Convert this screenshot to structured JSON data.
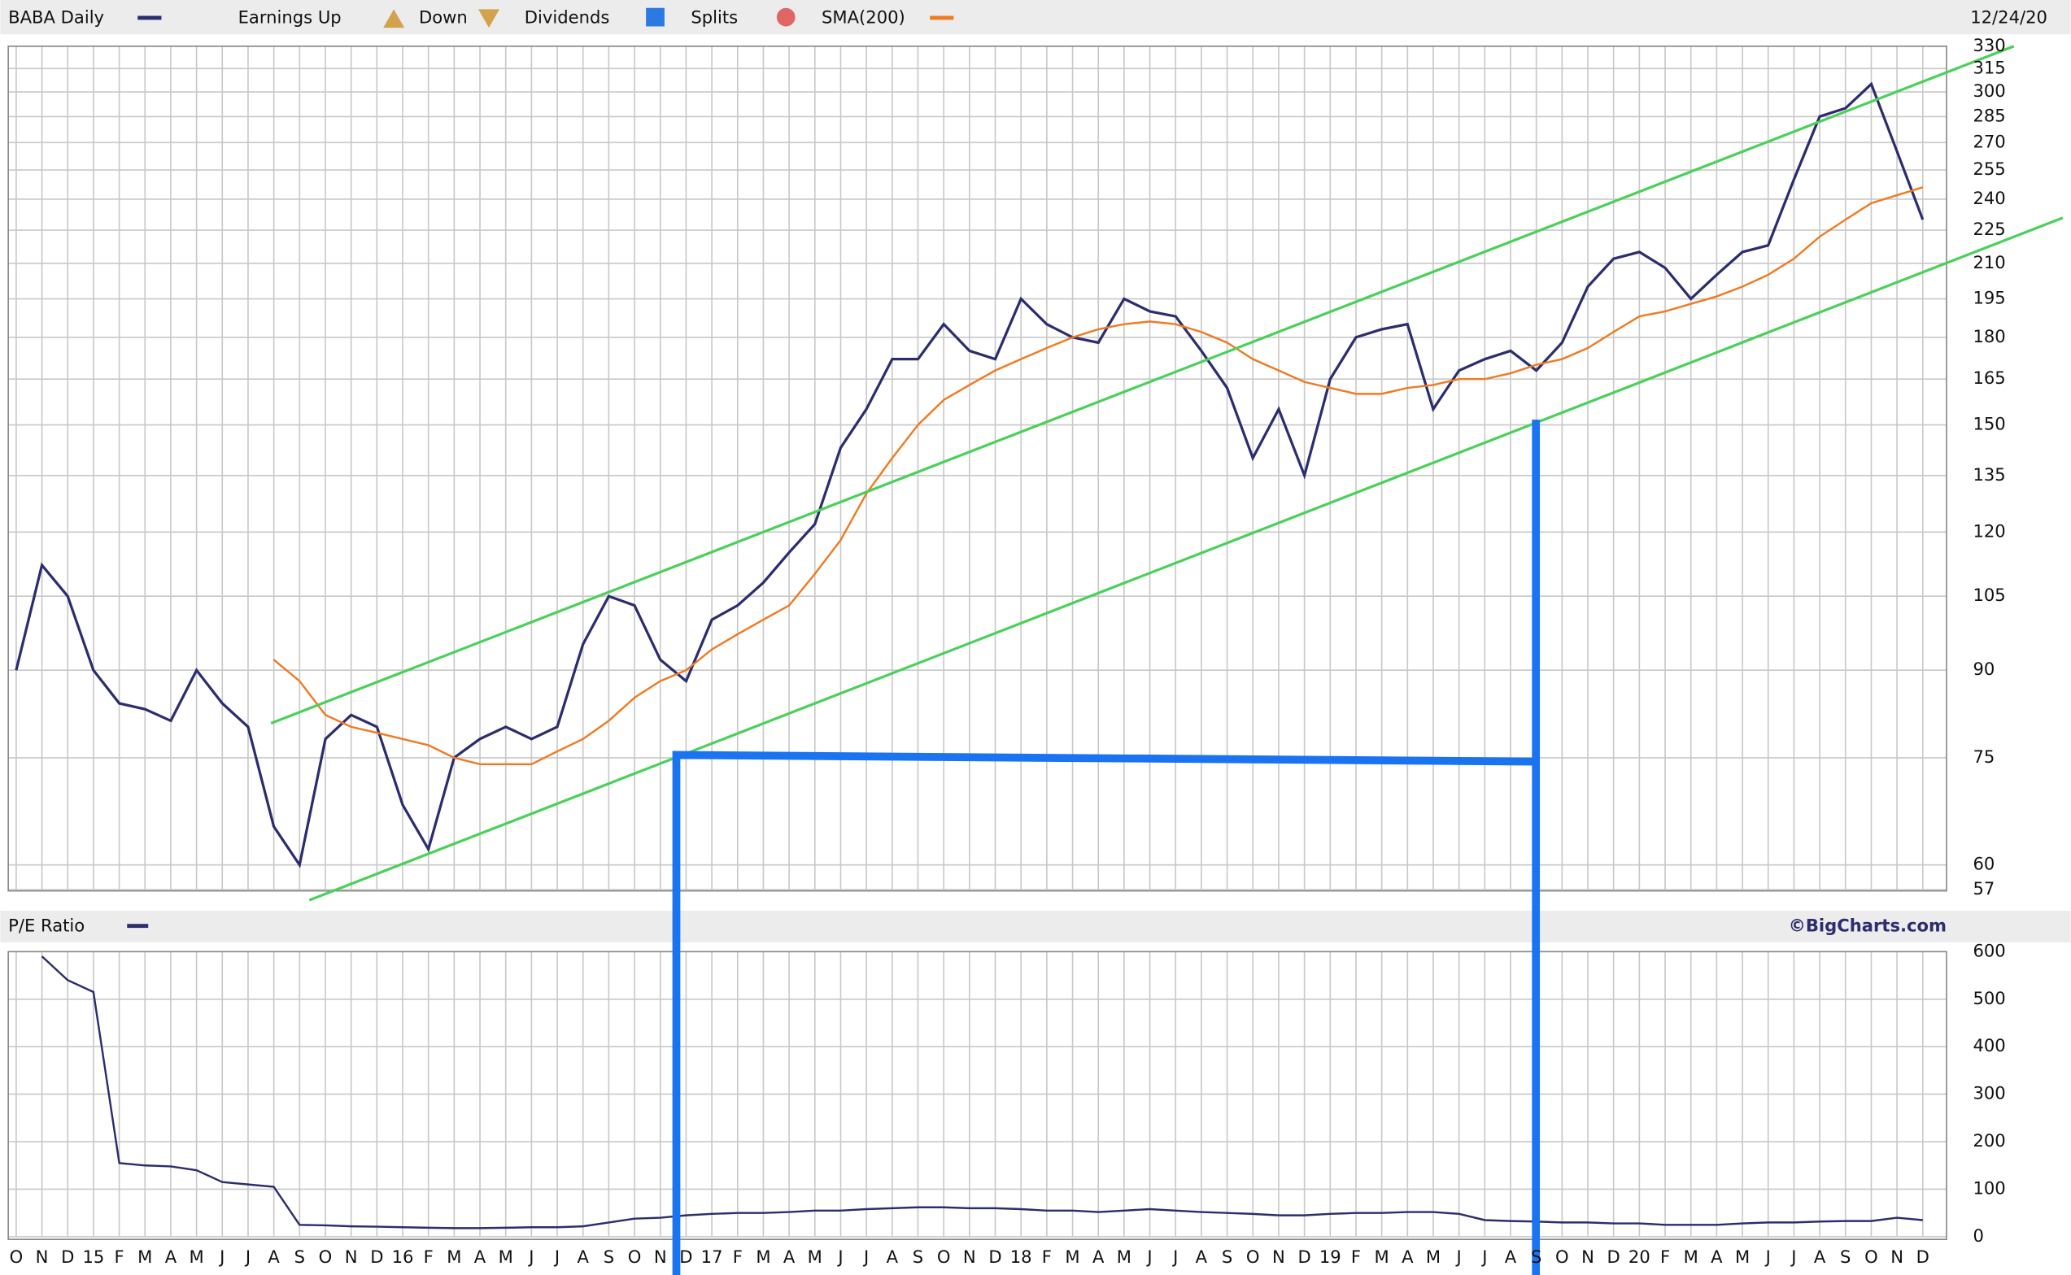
{
  "chart_data": {
    "type": "line",
    "title": "BABA Daily",
    "date": "12/24/20",
    "legend": {
      "earnings_up": "Earnings Up",
      "earnings_down": "Down",
      "dividends": "Dividends",
      "splits": "Splits"
    },
    "credit": "©BigCharts.com",
    "categories": [
      "O",
      "N",
      "D",
      "15",
      "F",
      "M",
      "A",
      "M",
      "J",
      "J",
      "A",
      "S",
      "O",
      "N",
      "D",
      "16",
      "F",
      "M",
      "A",
      "M",
      "J",
      "J",
      "A",
      "S",
      "O",
      "N",
      "D",
      "17",
      "F",
      "M",
      "A",
      "M",
      "J",
      "J",
      "A",
      "S",
      "O",
      "N",
      "D",
      "18",
      "F",
      "M",
      "A",
      "M",
      "J",
      "J",
      "A",
      "S",
      "O",
      "N",
      "D",
      "19",
      "F",
      "M",
      "A",
      "M",
      "J",
      "J",
      "A",
      "S",
      "O",
      "N",
      "D",
      "20",
      "F",
      "M",
      "A",
      "M",
      "J",
      "J",
      "A",
      "S",
      "O",
      "N",
      "D"
    ],
    "log_scale": true,
    "grid": true,
    "ylim": [
      57,
      330
    ],
    "yticks": [
      57,
      60,
      75,
      90,
      105,
      120,
      135,
      150,
      165,
      180,
      195,
      210,
      225,
      240,
      255,
      270,
      285,
      300,
      315,
      330
    ],
    "series": [
      {
        "name": "BABA Daily",
        "color": "#2b2d6e",
        "values": [
          90,
          112,
          105,
          90,
          84,
          83,
          81,
          90,
          84,
          80,
          65,
          60,
          78,
          82,
          80,
          68,
          62,
          75,
          78,
          80,
          78,
          80,
          95,
          105,
          103,
          92,
          88,
          100,
          103,
          108,
          115,
          122,
          143,
          155,
          172,
          172,
          185,
          175,
          172,
          195,
          185,
          180,
          178,
          195,
          190,
          188,
          175,
          162,
          140,
          155,
          135,
          165,
          180,
          183,
          185,
          155,
          168,
          172,
          175,
          168,
          178,
          200,
          212,
          215,
          208,
          195,
          205,
          215,
          218,
          250,
          285,
          290,
          305,
          265,
          230
        ]
      },
      {
        "name": "SMA(200)",
        "color": "#f07a22",
        "values": [
          null,
          null,
          null,
          null,
          null,
          null,
          null,
          null,
          null,
          null,
          92,
          88,
          82,
          80,
          79,
          78,
          77,
          75,
          74,
          74,
          74,
          76,
          78,
          81,
          85,
          88,
          90,
          94,
          97,
          100,
          103,
          110,
          118,
          130,
          140,
          150,
          158,
          163,
          168,
          172,
          176,
          180,
          183,
          185,
          186,
          185,
          182,
          178,
          172,
          168,
          164,
          162,
          160,
          160,
          162,
          163,
          165,
          165,
          167,
          170,
          172,
          176,
          182,
          188,
          190,
          193,
          196,
          200,
          205,
          212,
          222,
          230,
          238,
          242,
          246
        ]
      }
    ],
    "pe_panel": {
      "title": "P/E Ratio",
      "color": "#2b2d6e",
      "ylim": [
        0,
        600
      ],
      "yticks": [
        0,
        100,
        200,
        300,
        400,
        500,
        600
      ],
      "values": [
        null,
        590,
        540,
        515,
        155,
        150,
        148,
        140,
        115,
        110,
        105,
        25,
        24,
        22,
        21,
        20,
        19,
        18,
        18,
        19,
        20,
        20,
        22,
        30,
        38,
        40,
        45,
        48,
        50,
        50,
        52,
        55,
        55,
        58,
        60,
        62,
        62,
        60,
        60,
        58,
        55,
        55,
        52,
        55,
        58,
        55,
        52,
        50,
        48,
        45,
        45,
        48,
        50,
        50,
        52,
        52,
        48,
        35,
        33,
        32,
        30,
        30,
        28,
        28,
        25,
        25,
        25,
        28,
        30,
        30,
        32,
        33,
        33,
        40,
        35
      ]
    }
  }
}
